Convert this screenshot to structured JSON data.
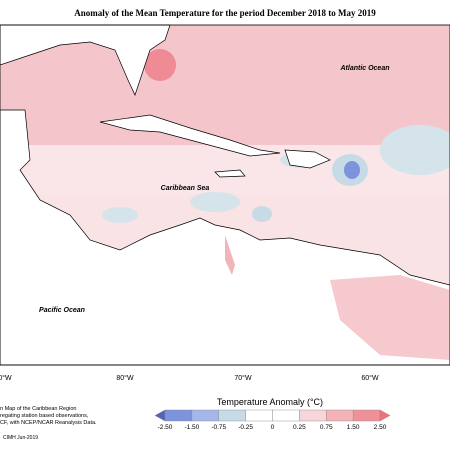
{
  "header": {
    "title": "Anomaly of the Mean Temperature for the period December 2018 to May 2019"
  },
  "labels": {
    "atlantic": "Atlantic Ocean",
    "caribbean": "Caribbean Sea",
    "pacific": "Pacific Ocean"
  },
  "longitudes": [
    "0°W",
    "80°W",
    "70°W",
    "60°W"
  ],
  "footnote": [
    "n Map of the Caribbean Region",
    "regating station based observations,",
    "CF, with NCEP/NCAR Reanalysis Data."
  ],
  "credit": "CIMH Jun-2019",
  "legend": {
    "title": "Temperature Anomaly (°C)",
    "ticks": [
      "-2.50",
      "-1.50",
      "-0.75",
      "-0.25",
      "0",
      "0.25",
      "0.75",
      "1.50",
      "2.50"
    ],
    "colors": [
      "#4f66b8",
      "#7d93dc",
      "#a3b7ea",
      "#c6dbe6",
      "#ffffff",
      "#ffffff",
      "#f7d6d9",
      "#f2b4b9",
      "#ee9299",
      "#f2707a"
    ]
  }
}
